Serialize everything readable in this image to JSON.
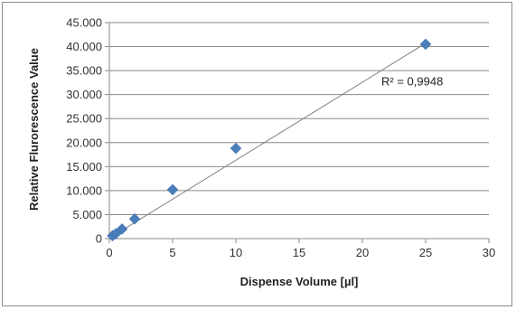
{
  "chart_data": {
    "type": "scatter",
    "title": "",
    "xlabel": "Dispense Volume [µl]",
    "ylabel": "Relative Flurorescence Value",
    "xlim": [
      0,
      30
    ],
    "ylim": [
      0,
      45000
    ],
    "x_ticks": [
      0,
      5,
      10,
      15,
      20,
      25,
      30
    ],
    "x_tick_labels": [
      "0",
      "5",
      "10",
      "15",
      "20",
      "25",
      "30"
    ],
    "y_ticks": [
      0,
      5000,
      10000,
      15000,
      20000,
      25000,
      30000,
      35000,
      40000,
      45000
    ],
    "y_tick_labels": [
      "0",
      "5.000",
      "10.000",
      "15.000",
      "20.000",
      "25.000",
      "30.000",
      "35.000",
      "40.000",
      "45.000"
    ],
    "grid": "horizontal",
    "legend": "none",
    "series": [
      {
        "points": [
          {
            "x": 0.25,
            "y": 600
          },
          {
            "x": 0.5,
            "y": 1000
          },
          {
            "x": 1,
            "y": 2000
          },
          {
            "x": 2,
            "y": 4100
          },
          {
            "x": 5,
            "y": 10200
          },
          {
            "x": 10,
            "y": 18800
          },
          {
            "x": 25,
            "y": 40500
          }
        ],
        "marker": "diamond",
        "color": "#4a7ebb"
      }
    ],
    "trendline": {
      "type": "linear",
      "from": {
        "x": 0,
        "y": 100
      },
      "to": {
        "x": 25,
        "y": 40700
      },
      "color": "#7f7f7f"
    },
    "annotations": [
      {
        "text": "R² = 0,9948",
        "x": 21.5,
        "y": 31900
      }
    ]
  }
}
